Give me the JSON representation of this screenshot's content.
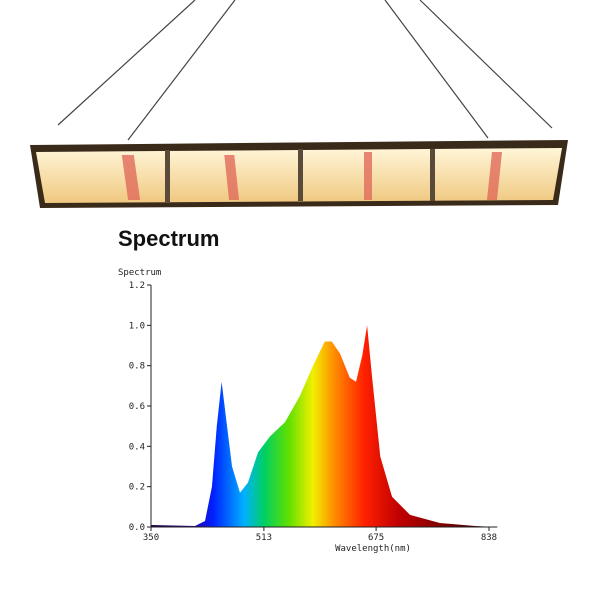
{
  "chart_data": {
    "type": "area",
    "title": "Spectrum",
    "y_label": "Spectrum",
    "x_label": "Wavelength(nm)",
    "x": [
      350,
      413.5,
      428,
      438,
      445,
      452,
      458,
      467,
      478.5,
      490,
      504.5,
      522,
      543.5,
      565,
      584,
      601,
      611,
      623,
      637,
      646,
      655,
      662,
      669,
      681,
      698,
      724,
      767,
      818,
      847
    ],
    "y": [
      0.01,
      0.005,
      0.03,
      0.2,
      0.5,
      0.72,
      0.55,
      0.3,
      0.17,
      0.22,
      0.37,
      0.45,
      0.52,
      0.65,
      0.8,
      0.92,
      0.92,
      0.86,
      0.74,
      0.72,
      0.85,
      1.0,
      0.75,
      0.35,
      0.15,
      0.06,
      0.02,
      0.005,
      0
    ],
    "xlim": [
      350,
      850
    ],
    "xticks": [
      350,
      513,
      675,
      838
    ],
    "ylim": [
      0,
      1.2
    ],
    "yticks": [
      {
        "value": 0,
        "label": "0.0"
      },
      0.2,
      0.4,
      0.6,
      0.8,
      {
        "value": 1,
        "label": "1.0"
      },
      1.2
    ]
  }
}
